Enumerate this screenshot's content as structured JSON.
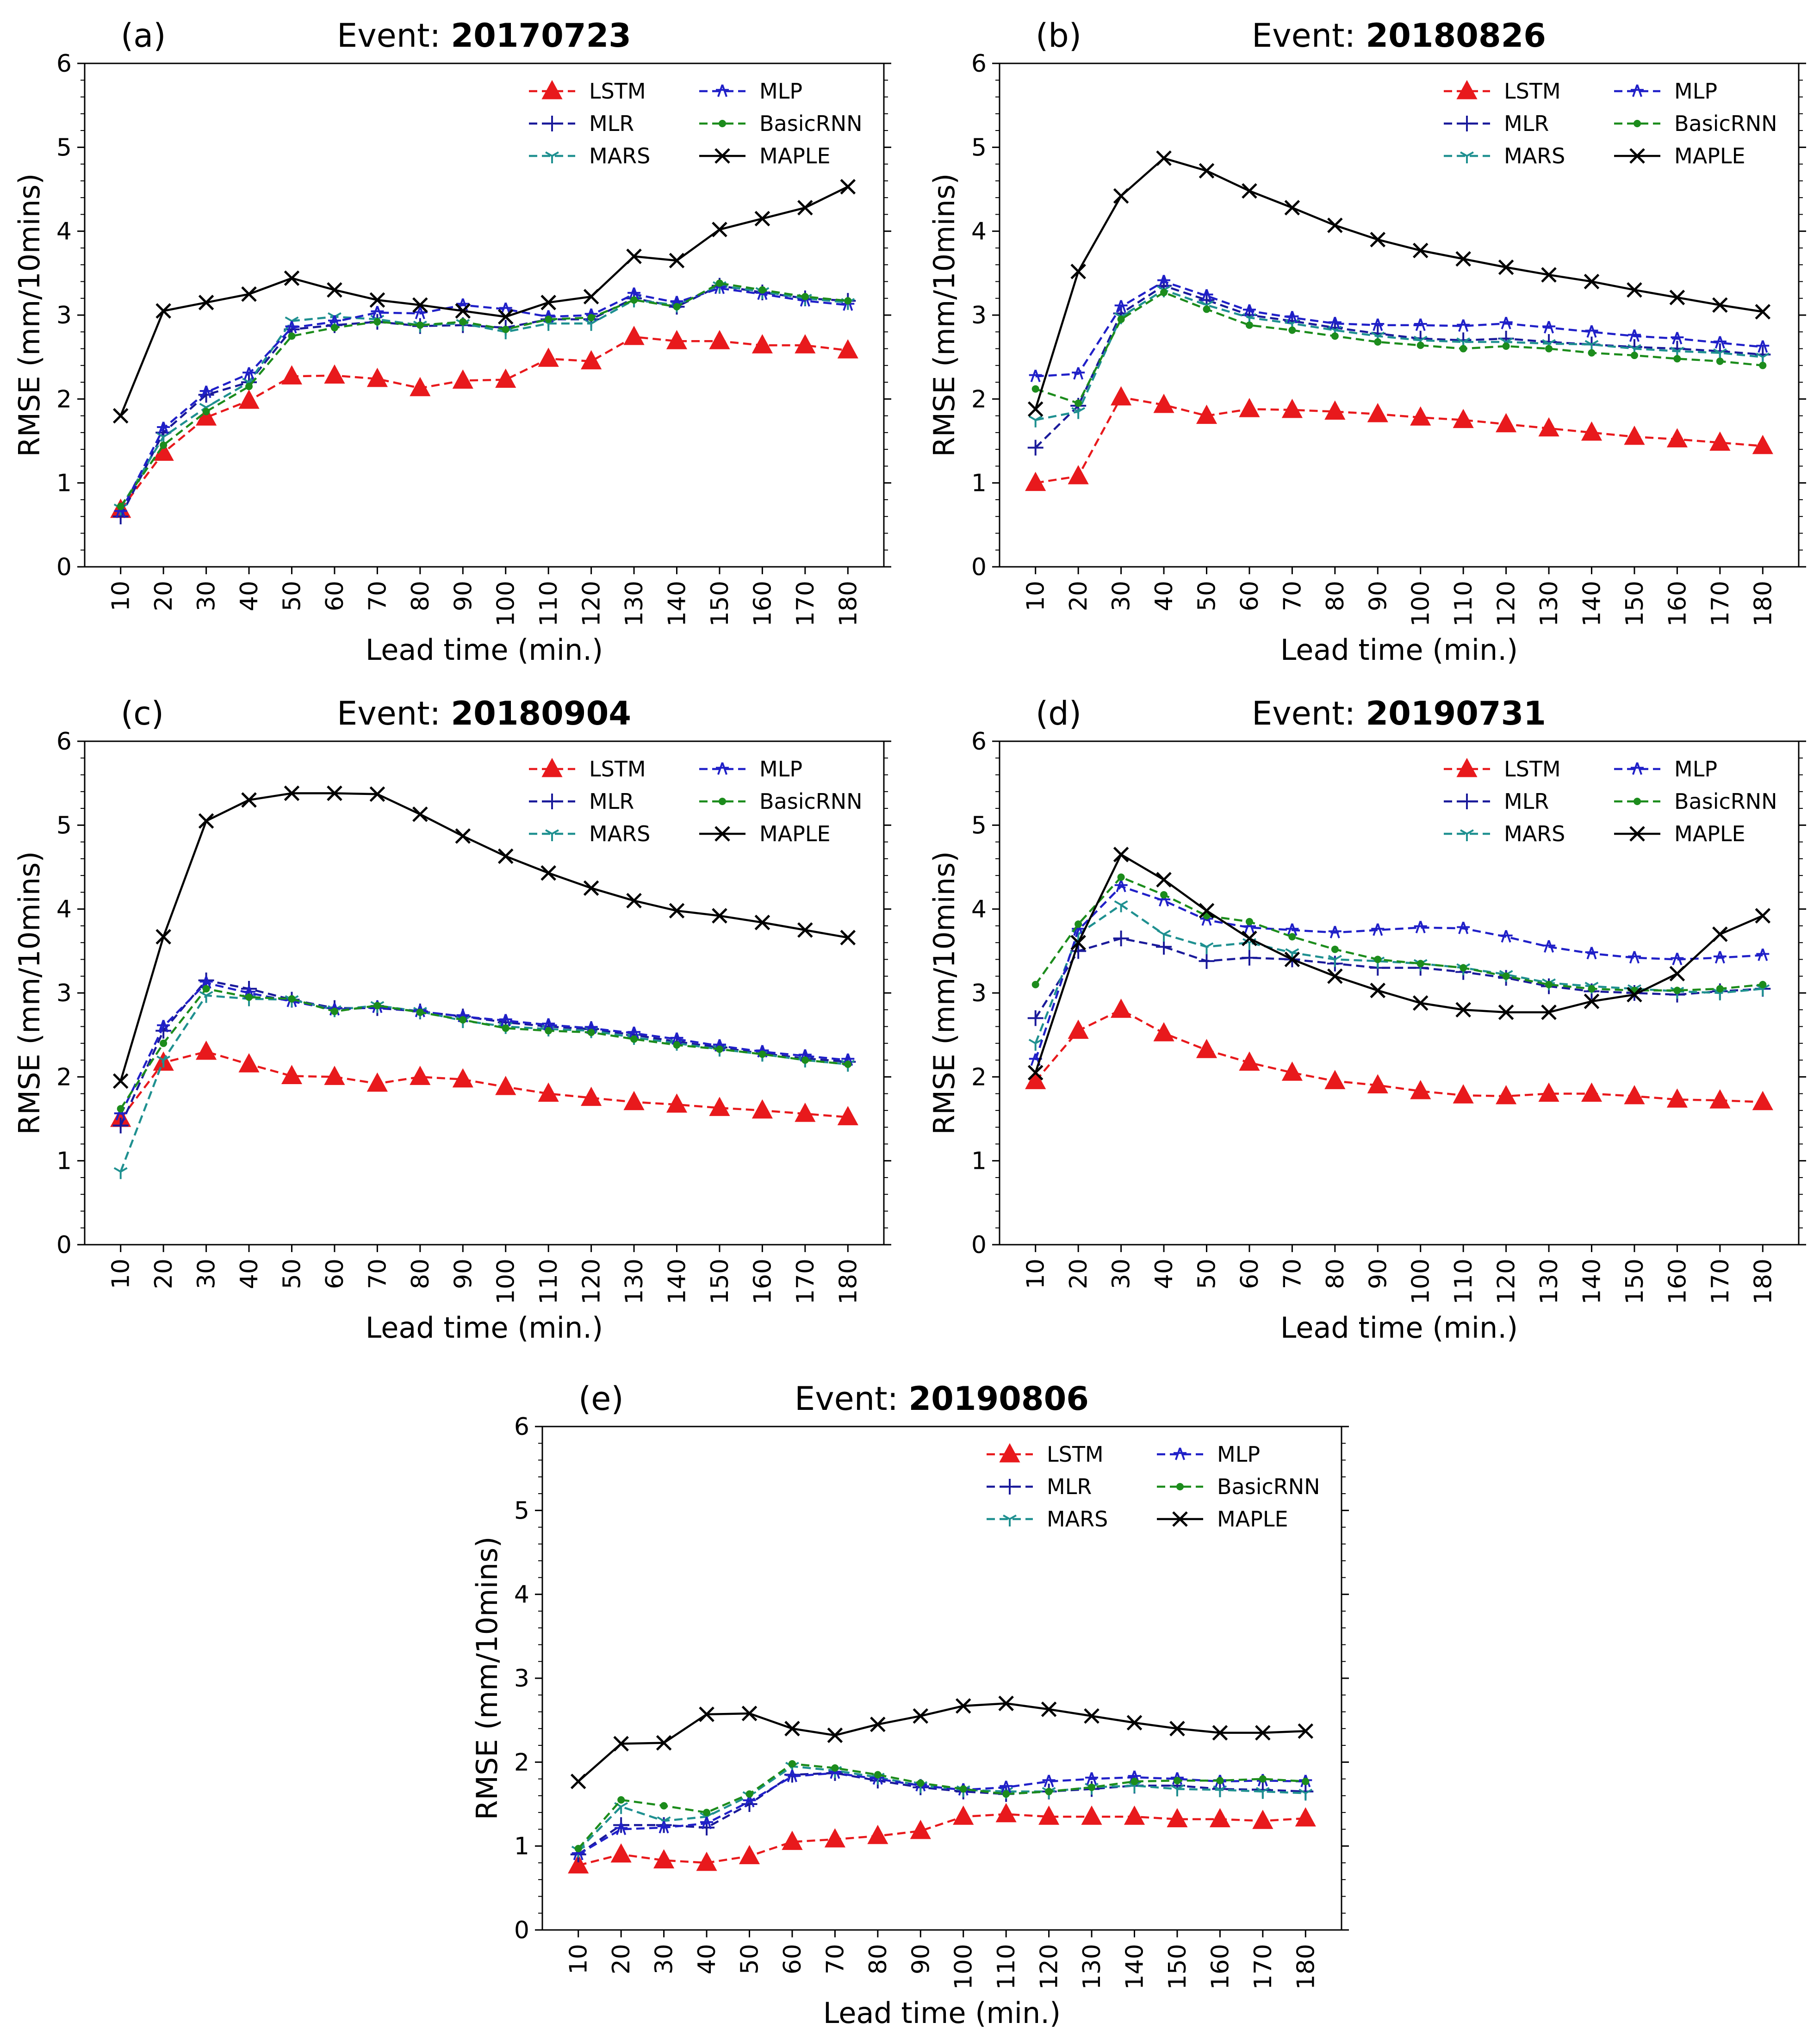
{
  "chart_data": [
    {
      "type": "line",
      "panel_label": "(a)",
      "title_prefix": "Event: ",
      "title_event": "20170723",
      "xlabel": "Lead time (min.)",
      "ylabel": "RMSE (mm/10mins)",
      "ylim": [
        0,
        6
      ],
      "yticks": [
        "0",
        "1",
        "2",
        "3",
        "4",
        "5",
        "6"
      ],
      "categories": [
        "10",
        "20",
        "30",
        "40",
        "50",
        "60",
        "70",
        "80",
        "90",
        "100",
        "110",
        "120",
        "130",
        "140",
        "150",
        "160",
        "170",
        "180"
      ],
      "legend_position": "top-right",
      "series": [
        {
          "name": "LSTM",
          "color": "#e8191c",
          "style": "dashed",
          "marker": "triangle",
          "values": [
            0.68,
            1.36,
            1.78,
            1.98,
            2.27,
            2.28,
            2.24,
            2.13,
            2.22,
            2.23,
            2.48,
            2.45,
            2.74,
            2.69,
            2.69,
            2.64,
            2.64,
            2.58
          ]
        },
        {
          "name": "MLR",
          "color": "#1a1a9a",
          "style": "dashed",
          "marker": "plus",
          "values": [
            0.6,
            1.6,
            2.05,
            2.2,
            2.83,
            2.88,
            2.92,
            2.87,
            2.88,
            2.85,
            2.95,
            2.95,
            3.2,
            3.1,
            3.35,
            3.27,
            3.2,
            3.17
          ]
        },
        {
          "name": "MARS",
          "color": "#1f9090",
          "style": "dashed",
          "marker": "tri",
          "values": [
            0.7,
            1.55,
            1.9,
            2.2,
            2.93,
            2.98,
            2.95,
            2.88,
            2.9,
            2.8,
            2.9,
            2.9,
            3.18,
            3.12,
            3.35,
            3.28,
            3.2,
            3.15
          ]
        },
        {
          "name": "MLP",
          "color": "#2020c8",
          "style": "dashed",
          "marker": "star",
          "values": [
            0.65,
            1.65,
            2.08,
            2.3,
            2.85,
            2.92,
            3.03,
            3.02,
            3.12,
            3.07,
            2.98,
            3.0,
            3.25,
            3.15,
            3.32,
            3.25,
            3.17,
            3.12
          ]
        },
        {
          "name": "BasicRNN",
          "color": "#1c8c1c",
          "style": "dashed",
          "marker": "dot",
          "values": [
            0.72,
            1.45,
            1.85,
            2.15,
            2.75,
            2.85,
            2.92,
            2.88,
            2.92,
            2.83,
            2.95,
            2.97,
            3.18,
            3.1,
            3.38,
            3.3,
            3.22,
            3.17
          ]
        },
        {
          "name": "MAPLE",
          "color": "#000000",
          "style": "solid",
          "marker": "x",
          "values": [
            1.8,
            3.05,
            3.15,
            3.25,
            3.44,
            3.3,
            3.18,
            3.12,
            3.05,
            2.98,
            3.15,
            3.22,
            3.7,
            3.65,
            4.02,
            4.15,
            4.28,
            4.53
          ]
        }
      ]
    },
    {
      "type": "line",
      "panel_label": "(b)",
      "title_prefix": "Event: ",
      "title_event": "20180826",
      "xlabel": "Lead time (min.)",
      "ylabel": "RMSE (mm/10mins)",
      "ylim": [
        0,
        6
      ],
      "yticks": [
        "0",
        "1",
        "2",
        "3",
        "4",
        "5",
        "6"
      ],
      "categories": [
        "10",
        "20",
        "30",
        "40",
        "50",
        "60",
        "70",
        "80",
        "90",
        "100",
        "110",
        "120",
        "130",
        "140",
        "150",
        "160",
        "170",
        "180"
      ],
      "legend_position": "top-right",
      "series": [
        {
          "name": "LSTM",
          "color": "#e8191c",
          "style": "dashed",
          "marker": "triangle",
          "values": [
            1.0,
            1.08,
            2.02,
            1.93,
            1.8,
            1.88,
            1.87,
            1.85,
            1.82,
            1.78,
            1.75,
            1.7,
            1.65,
            1.6,
            1.55,
            1.52,
            1.48,
            1.44
          ]
        },
        {
          "name": "MLR",
          "color": "#1a1a9a",
          "style": "dashed",
          "marker": "plus",
          "values": [
            1.42,
            1.92,
            3.02,
            3.35,
            3.18,
            3.0,
            2.93,
            2.85,
            2.78,
            2.72,
            2.7,
            2.72,
            2.68,
            2.65,
            2.62,
            2.6,
            2.57,
            2.53
          ]
        },
        {
          "name": "MARS",
          "color": "#1f9090",
          "style": "dashed",
          "marker": "tri",
          "values": [
            1.75,
            1.85,
            2.98,
            3.3,
            3.12,
            2.97,
            2.9,
            2.82,
            2.75,
            2.7,
            2.68,
            2.68,
            2.66,
            2.65,
            2.6,
            2.57,
            2.55,
            2.5
          ]
        },
        {
          "name": "MLP",
          "color": "#2020c8",
          "style": "dashed",
          "marker": "star",
          "values": [
            2.27,
            2.3,
            3.1,
            3.4,
            3.23,
            3.05,
            2.97,
            2.9,
            2.88,
            2.88,
            2.87,
            2.9,
            2.85,
            2.8,
            2.75,
            2.72,
            2.67,
            2.62
          ]
        },
        {
          "name": "BasicRNN",
          "color": "#1c8c1c",
          "style": "dashed",
          "marker": "dot",
          "values": [
            2.12,
            1.95,
            2.95,
            3.27,
            3.07,
            2.88,
            2.82,
            2.75,
            2.68,
            2.64,
            2.6,
            2.63,
            2.6,
            2.55,
            2.52,
            2.48,
            2.45,
            2.4
          ]
        },
        {
          "name": "MAPLE",
          "color": "#000000",
          "style": "solid",
          "marker": "x",
          "values": [
            1.88,
            3.52,
            4.42,
            4.87,
            4.72,
            4.48,
            4.28,
            4.07,
            3.9,
            3.77,
            3.67,
            3.57,
            3.48,
            3.4,
            3.3,
            3.21,
            3.12,
            3.04
          ]
        }
      ]
    },
    {
      "type": "line",
      "panel_label": "(c)",
      "title_prefix": "Event: ",
      "title_event": "20180904",
      "xlabel": "Lead time (min.)",
      "ylabel": "RMSE (mm/10mins)",
      "ylim": [
        0,
        6
      ],
      "yticks": [
        "0",
        "1",
        "2",
        "3",
        "4",
        "5",
        "6"
      ],
      "categories": [
        "10",
        "20",
        "30",
        "40",
        "50",
        "60",
        "70",
        "80",
        "90",
        "100",
        "110",
        "120",
        "130",
        "140",
        "150",
        "160",
        "170",
        "180"
      ],
      "legend_position": "top-right",
      "series": [
        {
          "name": "LSTM",
          "color": "#e8191c",
          "style": "dashed",
          "marker": "triangle",
          "values": [
            1.5,
            2.17,
            2.3,
            2.15,
            2.01,
            2.0,
            1.92,
            2.0,
            1.97,
            1.88,
            1.8,
            1.75,
            1.7,
            1.67,
            1.63,
            1.6,
            1.56,
            1.52
          ]
        },
        {
          "name": "MLR",
          "color": "#1a1a9a",
          "style": "dashed",
          "marker": "plus",
          "values": [
            1.42,
            2.55,
            3.15,
            3.05,
            2.92,
            2.82,
            2.82,
            2.78,
            2.72,
            2.65,
            2.6,
            2.57,
            2.5,
            2.42,
            2.35,
            2.28,
            2.22,
            2.18
          ]
        },
        {
          "name": "MARS",
          "color": "#1f9090",
          "style": "dashed",
          "marker": "tri",
          "values": [
            0.87,
            2.2,
            2.97,
            2.93,
            2.92,
            2.8,
            2.85,
            2.78,
            2.67,
            2.6,
            2.57,
            2.55,
            2.47,
            2.4,
            2.33,
            2.27,
            2.2,
            2.15
          ]
        },
        {
          "name": "MLP",
          "color": "#2020c8",
          "style": "dashed",
          "marker": "star",
          "values": [
            1.55,
            2.6,
            3.12,
            3.0,
            2.9,
            2.8,
            2.83,
            2.78,
            2.72,
            2.67,
            2.62,
            2.58,
            2.52,
            2.45,
            2.37,
            2.3,
            2.25,
            2.2
          ]
        },
        {
          "name": "BasicRNN",
          "color": "#1c8c1c",
          "style": "dashed",
          "marker": "dot",
          "values": [
            1.62,
            2.4,
            3.05,
            2.95,
            2.93,
            2.78,
            2.85,
            2.77,
            2.68,
            2.58,
            2.55,
            2.53,
            2.45,
            2.38,
            2.33,
            2.27,
            2.2,
            2.15
          ]
        },
        {
          "name": "MAPLE",
          "color": "#000000",
          "style": "solid",
          "marker": "x",
          "values": [
            1.95,
            3.67,
            5.05,
            5.3,
            5.38,
            5.38,
            5.37,
            5.13,
            4.87,
            4.63,
            4.43,
            4.25,
            4.1,
            3.98,
            3.92,
            3.84,
            3.75,
            3.66
          ]
        }
      ]
    },
    {
      "type": "line",
      "panel_label": "(d)",
      "title_prefix": "Event: ",
      "title_event": "20190731",
      "xlabel": "Lead time (min.)",
      "ylabel": "RMSE (mm/10mins)",
      "ylim": [
        0,
        6
      ],
      "yticks": [
        "0",
        "1",
        "2",
        "3",
        "4",
        "5",
        "6"
      ],
      "categories": [
        "10",
        "20",
        "30",
        "40",
        "50",
        "60",
        "70",
        "80",
        "90",
        "100",
        "110",
        "120",
        "130",
        "140",
        "150",
        "160",
        "170",
        "180"
      ],
      "legend_position": "top-right",
      "series": [
        {
          "name": "LSTM",
          "color": "#e8191c",
          "style": "dashed",
          "marker": "triangle",
          "values": [
            1.95,
            2.55,
            2.8,
            2.52,
            2.32,
            2.17,
            2.05,
            1.95,
            1.9,
            1.83,
            1.78,
            1.77,
            1.8,
            1.8,
            1.77,
            1.73,
            1.72,
            1.7
          ]
        },
        {
          "name": "MLR",
          "color": "#1a1a9a",
          "style": "dashed",
          "marker": "plus",
          "values": [
            2.7,
            3.5,
            3.65,
            3.55,
            3.38,
            3.42,
            3.4,
            3.35,
            3.3,
            3.3,
            3.25,
            3.18,
            3.08,
            3.02,
            3.0,
            2.98,
            3.02,
            3.05
          ]
        },
        {
          "name": "MARS",
          "color": "#1f9090",
          "style": "dashed",
          "marker": "tri",
          "values": [
            2.4,
            3.7,
            4.05,
            3.7,
            3.55,
            3.6,
            3.48,
            3.4,
            3.38,
            3.35,
            3.3,
            3.22,
            3.12,
            3.08,
            3.05,
            3.02,
            3.0,
            3.05
          ]
        },
        {
          "name": "MLP",
          "color": "#2020c8",
          "style": "dashed",
          "marker": "star",
          "values": [
            2.2,
            3.75,
            4.27,
            4.1,
            3.87,
            3.78,
            3.75,
            3.72,
            3.75,
            3.78,
            3.77,
            3.67,
            3.55,
            3.47,
            3.42,
            3.4,
            3.42,
            3.45
          ]
        },
        {
          "name": "BasicRNN",
          "color": "#1c8c1c",
          "style": "dashed",
          "marker": "dot",
          "values": [
            3.1,
            3.82,
            4.38,
            4.17,
            3.92,
            3.85,
            3.67,
            3.52,
            3.4,
            3.35,
            3.3,
            3.2,
            3.1,
            3.05,
            3.03,
            3.03,
            3.05,
            3.1
          ]
        },
        {
          "name": "MAPLE",
          "color": "#000000",
          "style": "solid",
          "marker": "x",
          "values": [
            2.05,
            3.6,
            4.65,
            4.35,
            3.98,
            3.65,
            3.4,
            3.2,
            3.03,
            2.88,
            2.8,
            2.77,
            2.77,
            2.9,
            2.98,
            3.23,
            3.7,
            3.92
          ]
        }
      ]
    },
    {
      "type": "line",
      "panel_label": "(e)",
      "title_prefix": "Event: ",
      "title_event": "20190806",
      "xlabel": "Lead time (min.)",
      "ylabel": "RMSE (mm/10mins)",
      "ylim": [
        0,
        6
      ],
      "yticks": [
        "0",
        "1",
        "2",
        "3",
        "4",
        "5",
        "6"
      ],
      "categories": [
        "10",
        "20",
        "30",
        "40",
        "50",
        "60",
        "70",
        "80",
        "90",
        "100",
        "110",
        "120",
        "130",
        "140",
        "150",
        "160",
        "170",
        "180"
      ],
      "legend_position": "top-right",
      "series": [
        {
          "name": "LSTM",
          "color": "#e8191c",
          "style": "dashed",
          "marker": "triangle",
          "values": [
            0.77,
            0.9,
            0.83,
            0.8,
            0.88,
            1.05,
            1.08,
            1.12,
            1.18,
            1.35,
            1.38,
            1.35,
            1.35,
            1.35,
            1.32,
            1.32,
            1.3,
            1.33
          ]
        },
        {
          "name": "MLR",
          "color": "#1a1a9a",
          "style": "dashed",
          "marker": "plus",
          "values": [
            0.9,
            1.25,
            1.25,
            1.22,
            1.5,
            1.85,
            1.87,
            1.78,
            1.7,
            1.65,
            1.62,
            1.65,
            1.68,
            1.72,
            1.72,
            1.68,
            1.67,
            1.65
          ]
        },
        {
          "name": "MARS",
          "color": "#1f9090",
          "style": "dashed",
          "marker": "tri",
          "values": [
            0.95,
            1.47,
            1.3,
            1.35,
            1.6,
            1.95,
            1.9,
            1.82,
            1.72,
            1.67,
            1.65,
            1.65,
            1.7,
            1.72,
            1.68,
            1.67,
            1.65,
            1.63
          ]
        },
        {
          "name": "MLP",
          "color": "#2020c8",
          "style": "dashed",
          "marker": "star",
          "values": [
            0.9,
            1.2,
            1.22,
            1.27,
            1.53,
            1.83,
            1.87,
            1.8,
            1.72,
            1.67,
            1.7,
            1.77,
            1.8,
            1.82,
            1.8,
            1.77,
            1.78,
            1.77
          ]
        },
        {
          "name": "BasicRNN",
          "color": "#1c8c1c",
          "style": "dashed",
          "marker": "dot",
          "values": [
            0.97,
            1.55,
            1.48,
            1.4,
            1.62,
            1.98,
            1.93,
            1.85,
            1.75,
            1.68,
            1.62,
            1.65,
            1.7,
            1.77,
            1.78,
            1.78,
            1.8,
            1.77
          ]
        },
        {
          "name": "MAPLE",
          "color": "#000000",
          "style": "solid",
          "marker": "x",
          "values": [
            1.77,
            2.22,
            2.23,
            2.57,
            2.58,
            2.4,
            2.32,
            2.45,
            2.55,
            2.67,
            2.7,
            2.63,
            2.55,
            2.47,
            2.4,
            2.35,
            2.35,
            2.37
          ]
        }
      ]
    }
  ]
}
